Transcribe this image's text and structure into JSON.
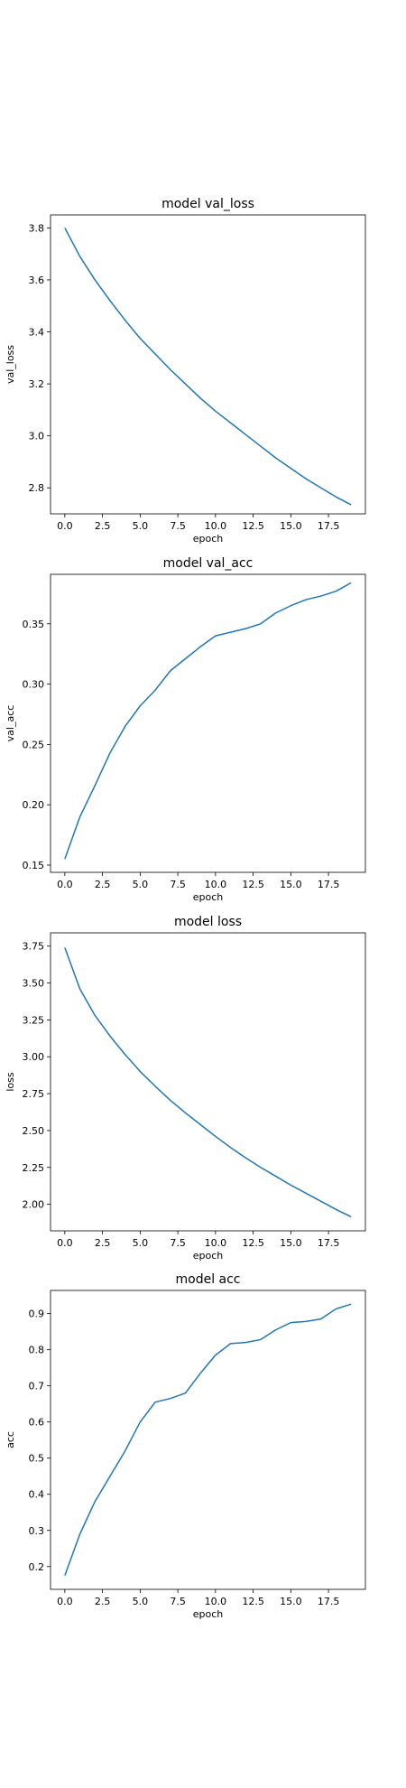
{
  "line_color": "#1f77b4",
  "chart_data": [
    {
      "type": "line",
      "title": "model val_loss",
      "xlabel": "epoch",
      "ylabel": "val_loss",
      "x": [
        0,
        1,
        2,
        3,
        4,
        5,
        6,
        7,
        8,
        9,
        10,
        11,
        12,
        13,
        14,
        15,
        16,
        17,
        18,
        19
      ],
      "values": [
        3.8,
        3.69,
        3.6,
        3.52,
        3.445,
        3.375,
        3.315,
        3.255,
        3.2,
        3.145,
        3.095,
        3.05,
        3.005,
        2.96,
        2.915,
        2.875,
        2.835,
        2.8,
        2.765,
        2.735
      ],
      "xlim": [
        -0.95,
        19.95
      ],
      "ylim": [
        2.7,
        3.85
      ],
      "xticks": [
        0.0,
        2.5,
        5.0,
        7.5,
        10.0,
        12.5,
        15.0,
        17.5
      ],
      "xtick_labels": [
        "0.0",
        "2.5",
        "5.0",
        "7.5",
        "10.0",
        "12.5",
        "15.0",
        "17.5"
      ],
      "yticks": [
        2.8,
        3.0,
        3.2,
        3.4,
        3.6,
        3.8
      ],
      "ytick_labels": [
        "2.8",
        "3.0",
        "3.2",
        "3.4",
        "3.6",
        "3.8"
      ]
    },
    {
      "type": "line",
      "title": "model val_acc",
      "xlabel": "epoch",
      "ylabel": "val_acc",
      "x": [
        0,
        1,
        2,
        3,
        4,
        5,
        6,
        7,
        8,
        9,
        10,
        11,
        12,
        13,
        14,
        15,
        16,
        17,
        18,
        19
      ],
      "values": [
        0.155,
        0.19,
        0.216,
        0.243,
        0.265,
        0.282,
        0.295,
        0.311,
        0.321,
        0.331,
        0.34,
        0.343,
        0.346,
        0.35,
        0.359,
        0.365,
        0.37,
        0.373,
        0.377,
        0.384
      ],
      "xlim": [
        -0.95,
        19.95
      ],
      "ylim": [
        0.144,
        0.391
      ],
      "xticks": [
        0.0,
        2.5,
        5.0,
        7.5,
        10.0,
        12.5,
        15.0,
        17.5
      ],
      "xtick_labels": [
        "0.0",
        "2.5",
        "5.0",
        "7.5",
        "10.0",
        "12.5",
        "15.0",
        "17.5"
      ],
      "yticks": [
        0.15,
        0.2,
        0.25,
        0.3,
        0.35
      ],
      "ytick_labels": [
        "0.15",
        "0.20",
        "0.25",
        "0.30",
        "0.35"
      ]
    },
    {
      "type": "line",
      "title": "model loss",
      "xlabel": "epoch",
      "ylabel": "loss",
      "x": [
        0,
        1,
        2,
        3,
        4,
        5,
        6,
        7,
        8,
        9,
        10,
        11,
        12,
        13,
        14,
        15,
        16,
        17,
        18,
        19
      ],
      "values": [
        3.74,
        3.46,
        3.28,
        3.14,
        3.015,
        2.9,
        2.8,
        2.705,
        2.62,
        2.54,
        2.46,
        2.385,
        2.315,
        2.25,
        2.19,
        2.13,
        2.075,
        2.02,
        1.965,
        1.915
      ],
      "xlim": [
        -0.95,
        19.95
      ],
      "ylim": [
        1.82,
        3.84
      ],
      "xticks": [
        0.0,
        2.5,
        5.0,
        7.5,
        10.0,
        12.5,
        15.0,
        17.5
      ],
      "xtick_labels": [
        "0.0",
        "2.5",
        "5.0",
        "7.5",
        "10.0",
        "12.5",
        "15.0",
        "17.5"
      ],
      "yticks": [
        2.0,
        2.25,
        2.5,
        2.75,
        3.0,
        3.25,
        3.5,
        3.75
      ],
      "ytick_labels": [
        "2.00",
        "2.25",
        "2.50",
        "2.75",
        "3.00",
        "3.25",
        "3.50",
        "3.75"
      ]
    },
    {
      "type": "line",
      "title": "model acc",
      "xlabel": "epoch",
      "ylabel": "acc",
      "x": [
        0,
        1,
        2,
        3,
        4,
        5,
        6,
        7,
        8,
        9,
        10,
        11,
        12,
        13,
        14,
        15,
        16,
        17,
        18,
        19
      ],
      "values": [
        0.175,
        0.29,
        0.38,
        0.45,
        0.52,
        0.6,
        0.655,
        0.665,
        0.68,
        0.735,
        0.785,
        0.817,
        0.82,
        0.828,
        0.855,
        0.875,
        0.878,
        0.885,
        0.913,
        0.926
      ],
      "xlim": [
        -0.95,
        19.95
      ],
      "ylim": [
        0.137,
        0.964
      ],
      "xticks": [
        0.0,
        2.5,
        5.0,
        7.5,
        10.0,
        12.5,
        15.0,
        17.5
      ],
      "xtick_labels": [
        "0.0",
        "2.5",
        "5.0",
        "7.5",
        "10.0",
        "12.5",
        "15.0",
        "17.5"
      ],
      "yticks": [
        0.2,
        0.3,
        0.4,
        0.5,
        0.6,
        0.7,
        0.8,
        0.9
      ],
      "ytick_labels": [
        "0.2",
        "0.3",
        "0.4",
        "0.5",
        "0.6",
        "0.7",
        "0.8",
        "0.9"
      ]
    }
  ]
}
